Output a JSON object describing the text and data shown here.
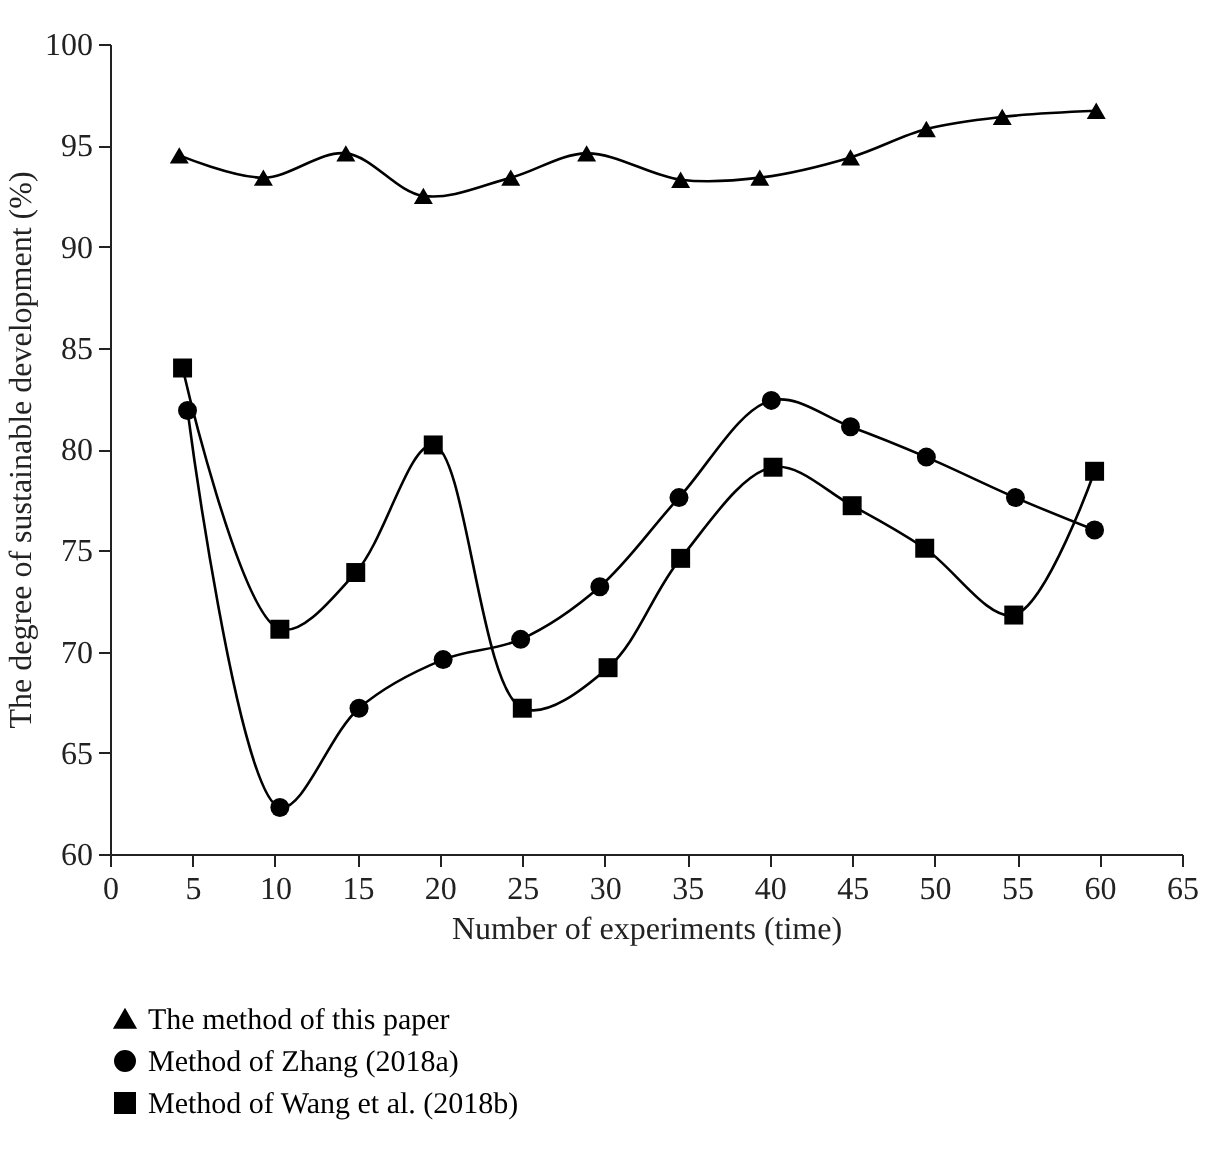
{
  "chart_data": {
    "type": "line",
    "xlabel": "Number of experiments (time)",
    "ylabel": "The degree of sustainable development (%)",
    "xlim": [
      0,
      65
    ],
    "xticks": [
      0,
      5,
      10,
      15,
      20,
      25,
      30,
      35,
      40,
      45,
      50,
      55,
      60,
      65
    ],
    "ylim": [
      60,
      100
    ],
    "yticks": [
      60,
      65,
      70,
      75,
      80,
      85,
      90,
      95,
      100
    ],
    "grid": false,
    "legend": "bottom left",
    "line_style": "solid",
    "series": [
      {
        "name": "The method of this paper",
        "color": "#000000",
        "marker": "triangle",
        "x": [
          4.2,
          9.3,
          14.3,
          19.0,
          24.3,
          28.9,
          34.6,
          39.4,
          44.9,
          49.5,
          54.1,
          59.8
        ],
        "values": [
          94.5,
          93.4,
          94.6,
          92.5,
          93.4,
          94.6,
          93.3,
          93.4,
          94.4,
          95.8,
          96.4,
          96.7
        ]
      },
      {
        "name": "Method of Zhang (2018a)",
        "color": "#000000",
        "marker": "circle",
        "x": [
          4.7,
          10.3,
          15.1,
          20.2,
          24.9,
          29.7,
          34.5,
          40.1,
          44.9,
          49.5,
          54.9,
          59.7
        ],
        "values": [
          81.9,
          62.3,
          67.2,
          69.6,
          70.6,
          73.2,
          77.6,
          82.4,
          81.1,
          79.6,
          77.6,
          76.0
        ]
      },
      {
        "name": "Method of Wang et al. (2018b)",
        "color": "#000000",
        "marker": "square",
        "x": [
          4.4,
          10.3,
          14.9,
          19.6,
          25.0,
          30.2,
          34.6,
          40.2,
          45.0,
          49.4,
          54.8,
          59.7
        ],
        "values": [
          84.0,
          71.1,
          73.9,
          80.2,
          67.2,
          69.2,
          74.6,
          79.1,
          77.2,
          75.1,
          71.8,
          78.9
        ]
      }
    ]
  }
}
